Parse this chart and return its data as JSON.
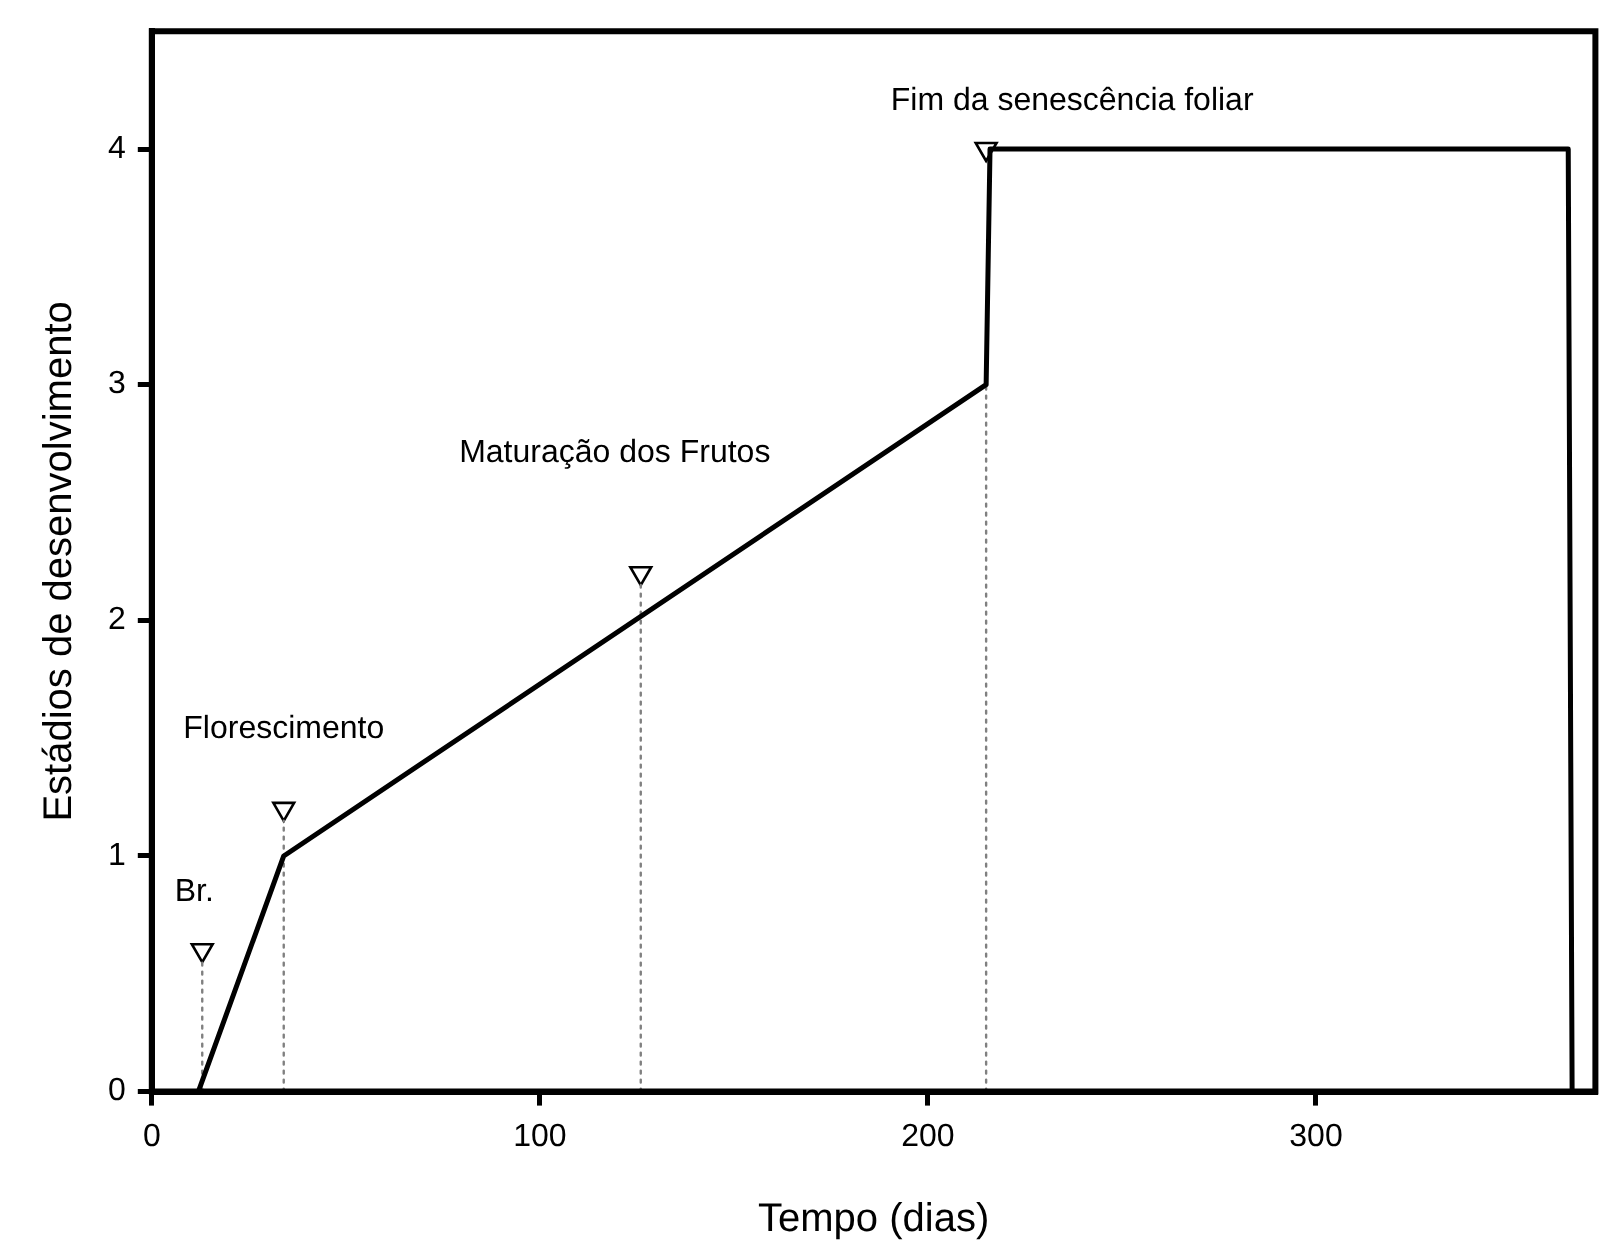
{
  "chart_data": {
    "type": "line",
    "xlabel": "Tempo (dias)",
    "ylabel": "Estádios de desenvolvimento",
    "xlim": [
      0,
      372
    ],
    "ylim": [
      0,
      4.5
    ],
    "xticks": [
      0,
      100,
      200,
      300
    ],
    "yticks": [
      0,
      1,
      2,
      3,
      4
    ],
    "annotations": [
      "Br.",
      "Florescimento",
      "Maturação dos Frutos",
      "Fim da senescência foliar"
    ],
    "series": [
      {
        "color": "#000000",
        "marker": "none",
        "line_style": "solid",
        "x": [
          12,
          34,
          215,
          216,
          365,
          366
        ],
        "values": [
          0,
          1,
          3,
          4,
          4,
          0
        ]
      },
      {
        "type": "line",
        "color": "#808080",
        "marker": "none",
        "line_style": "dotted",
        "x": [
          13,
          13
        ],
        "values": [
          0,
          0.55
        ]
      },
      {
        "type": "line",
        "color": "#808080",
        "marker": "none",
        "line_style": "dotted",
        "x": [
          34,
          34
        ],
        "values": [
          0,
          1.15
        ]
      },
      {
        "type": "line",
        "color": "#808080",
        "marker": "none",
        "line_style": "dotted",
        "x": [
          126,
          126
        ],
        "values": [
          0,
          2.15
        ]
      },
      {
        "type": "line",
        "color": "#808080",
        "marker": "none",
        "line_style": "dotted",
        "x": [
          215,
          215
        ],
        "values": [
          0,
          3
        ]
      },
      {
        "type": "scatter",
        "color": "#000000",
        "marker": "triangle",
        "x": [
          13,
          34,
          126,
          215
        ],
        "values": [
          0.6,
          1.2,
          2.2,
          4
        ]
      }
    ]
  }
}
